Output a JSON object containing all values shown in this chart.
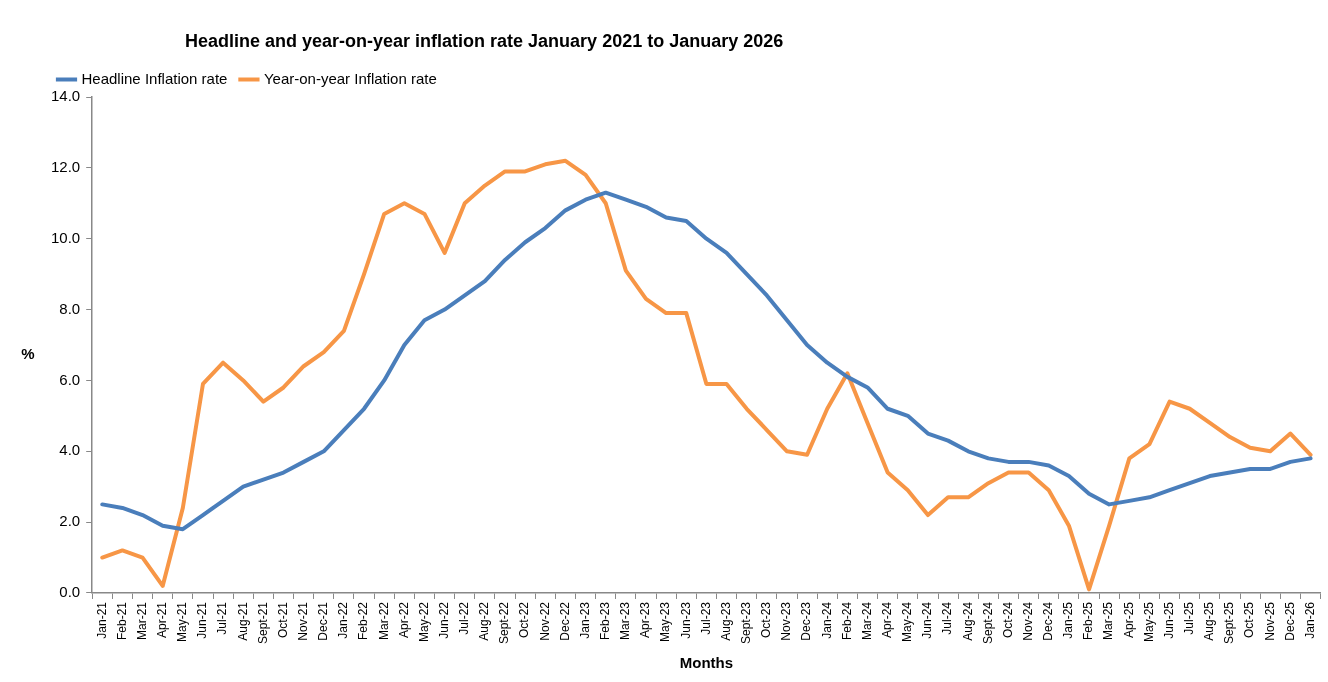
{
  "chart_data": {
    "type": "line",
    "title": "Headline and year-on-year inflation rate January 2021 to January 2026",
    "xlabel": "Months",
    "ylabel": "%",
    "categories": [
      "Jan-21",
      "Feb-21",
      "Mar-21",
      "Apr-21",
      "May-21",
      "Jun-21",
      "Jul-21",
      "Aug-21",
      "Sept-21",
      "Oct-21",
      "Nov-21",
      "Dec-21",
      "Jan-22",
      "Feb-22",
      "Mar-22",
      "Apr-22",
      "May-22",
      "Jun-22",
      "Jul-22",
      "Aug-22",
      "Sept-22",
      "Oct-22",
      "Nov-22",
      "Dec-22",
      "Jan-23",
      "Feb-23",
      "Mar-23",
      "Apr-23",
      "May-23",
      "Jun-23",
      "Jul-23",
      "Aug-23",
      "Sept-23",
      "Oct-23",
      "Nov-23",
      "Dec-23",
      "Jan-24",
      "Feb-24",
      "Mar-24",
      "Apr-24",
      "May-24",
      "Jun-24",
      "Jul-24",
      "Aug-24",
      "Sept-24",
      "Oct-24",
      "Nov-24",
      "Dec-24",
      "Jan-25",
      "Feb-25",
      "Mar-25",
      "Apr-25",
      "May-25",
      "Jun-25",
      "Jul-25",
      "Aug-25",
      "Sept-25",
      "Oct-25",
      "Nov-25",
      "Dec-25",
      "Jan-26"
    ],
    "series": [
      {
        "name": "Headline Inflation rate",
        "color": "#4a7ebb",
        "values": [
          2.5,
          2.4,
          2.2,
          1.9,
          1.8,
          2.2,
          2.6,
          3.0,
          3.2,
          3.4,
          3.7,
          4.0,
          4.6,
          5.2,
          6.0,
          7.0,
          7.7,
          8.0,
          8.4,
          8.8,
          9.4,
          9.9,
          10.3,
          10.8,
          11.1,
          11.3,
          11.1,
          10.9,
          10.6,
          10.5,
          10.0,
          9.6,
          9.0,
          8.4,
          7.7,
          7.0,
          6.5,
          6.1,
          5.8,
          5.2,
          5.0,
          4.5,
          4.3,
          4.0,
          3.8,
          3.7,
          3.7,
          3.6,
          3.3,
          2.8,
          2.5,
          2.6,
          2.7,
          2.9,
          3.1,
          3.3,
          3.4,
          3.5,
          3.5,
          3.7,
          3.8
        ]
      },
      {
        "name": "Year-on-year Inflation rate",
        "color": "#f79646",
        "values": [
          1.0,
          1.2,
          1.0,
          0.2,
          2.4,
          5.9,
          6.5,
          6.0,
          5.4,
          5.8,
          6.4,
          6.8,
          7.4,
          9.0,
          10.7,
          11.0,
          10.7,
          9.6,
          11.0,
          11.5,
          11.9,
          11.9,
          12.1,
          12.2,
          11.8,
          11.0,
          9.1,
          8.3,
          7.9,
          7.9,
          5.9,
          5.9,
          5.2,
          4.6,
          4.0,
          3.9,
          5.2,
          6.2,
          4.8,
          3.4,
          2.9,
          2.2,
          2.7,
          2.7,
          3.1,
          3.4,
          3.4,
          2.9,
          1.9,
          0.1,
          1.9,
          3.8,
          4.2,
          5.4,
          5.2,
          4.8,
          4.4,
          4.1,
          4.0,
          4.5,
          3.9
        ]
      }
    ],
    "ylim": [
      0,
      14
    ],
    "yticks": [
      {
        "value": 0,
        "label": "0.0"
      },
      {
        "value": 2,
        "label": "2.0"
      },
      {
        "value": 4,
        "label": "4.0"
      },
      {
        "value": 6,
        "label": "6.0"
      },
      {
        "value": 8,
        "label": "8.0"
      },
      {
        "value": 10,
        "label": "10.0"
      },
      {
        "value": 12,
        "label": "12.0"
      },
      {
        "value": 14,
        "label": "14.0"
      }
    ],
    "grid": false,
    "legend": "top left",
    "marker": "none",
    "line_style": "solid"
  }
}
